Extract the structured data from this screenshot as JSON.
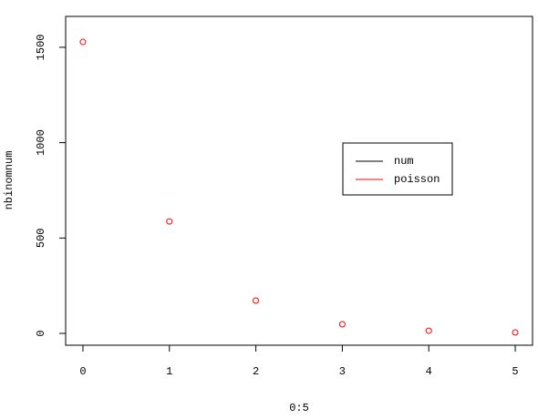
{
  "chart_data": {
    "type": "scatter",
    "x": [
      0,
      1,
      2,
      3,
      4,
      5
    ],
    "xlabel": "0:5",
    "ylabel": "nbinomnum",
    "series": [
      {
        "name": "poisson",
        "color": "#ff0000",
        "values": [
          1528,
          587,
          172,
          48,
          14,
          5
        ]
      }
    ],
    "legend": [
      {
        "name": "num",
        "color": "#000000"
      },
      {
        "name": "poisson",
        "color": "#ff0000"
      }
    ],
    "xlim": [
      -0.2,
      5.2
    ],
    "ylim": [
      -62,
      1662
    ],
    "xticks": [
      0,
      1,
      2,
      3,
      4,
      5
    ],
    "yticks": [
      0,
      500,
      1000,
      1500
    ]
  }
}
